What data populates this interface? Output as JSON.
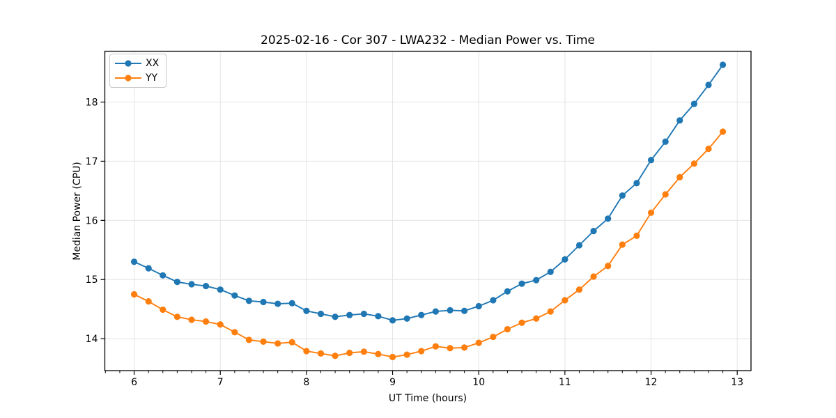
{
  "chart_data": {
    "type": "line",
    "title": "2025-02-16 - Cor 307 - LWA232 - Median Power vs. Time",
    "xlabel": "UT Time (hours)",
    "ylabel": "Median Power (CPU)",
    "xlim": [
      5.66,
      13.16
    ],
    "ylim": [
      13.46,
      18.86
    ],
    "xticks": [
      6,
      7,
      8,
      9,
      10,
      11,
      12,
      13
    ],
    "yticks": [
      14,
      15,
      16,
      17,
      18
    ],
    "x_minor_step": 0.1666667,
    "grid": true,
    "grid_color": "#e4e4e4",
    "legend_position": "upper left",
    "x": [
      6.0,
      6.167,
      6.333,
      6.5,
      6.667,
      6.833,
      7.0,
      7.167,
      7.333,
      7.5,
      7.667,
      7.833,
      8.0,
      8.167,
      8.333,
      8.5,
      8.667,
      8.833,
      9.0,
      9.167,
      9.333,
      9.5,
      9.667,
      9.833,
      10.0,
      10.167,
      10.333,
      10.5,
      10.667,
      10.833,
      11.0,
      11.167,
      11.333,
      11.5,
      11.667,
      11.833,
      12.0,
      12.167,
      12.333,
      12.5,
      12.667,
      12.833
    ],
    "series": [
      {
        "name": "XX",
        "color": "#1f77b4",
        "values": [
          15.3,
          15.19,
          15.07,
          14.96,
          14.92,
          14.89,
          14.83,
          14.73,
          14.64,
          14.62,
          14.59,
          14.6,
          14.47,
          14.42,
          14.37,
          14.4,
          14.42,
          14.38,
          14.31,
          14.34,
          14.4,
          14.46,
          14.48,
          14.47,
          14.55,
          14.65,
          14.8,
          14.93,
          14.99,
          15.13,
          15.34,
          15.58,
          15.82,
          16.03,
          16.42,
          16.63,
          17.02,
          17.33,
          17.69,
          17.97,
          18.29,
          18.63
        ]
      },
      {
        "name": "YY",
        "color": "#ff7f0e",
        "values": [
          14.75,
          14.63,
          14.49,
          14.37,
          14.32,
          14.29,
          14.24,
          14.11,
          13.98,
          13.95,
          13.92,
          13.94,
          13.79,
          13.75,
          13.71,
          13.76,
          13.78,
          13.74,
          13.69,
          13.73,
          13.79,
          13.87,
          13.84,
          13.85,
          13.93,
          14.03,
          14.16,
          14.27,
          14.34,
          14.46,
          14.65,
          14.83,
          15.05,
          15.23,
          15.59,
          15.74,
          16.13,
          16.44,
          16.73,
          16.96,
          17.21,
          17.5
        ]
      }
    ]
  }
}
